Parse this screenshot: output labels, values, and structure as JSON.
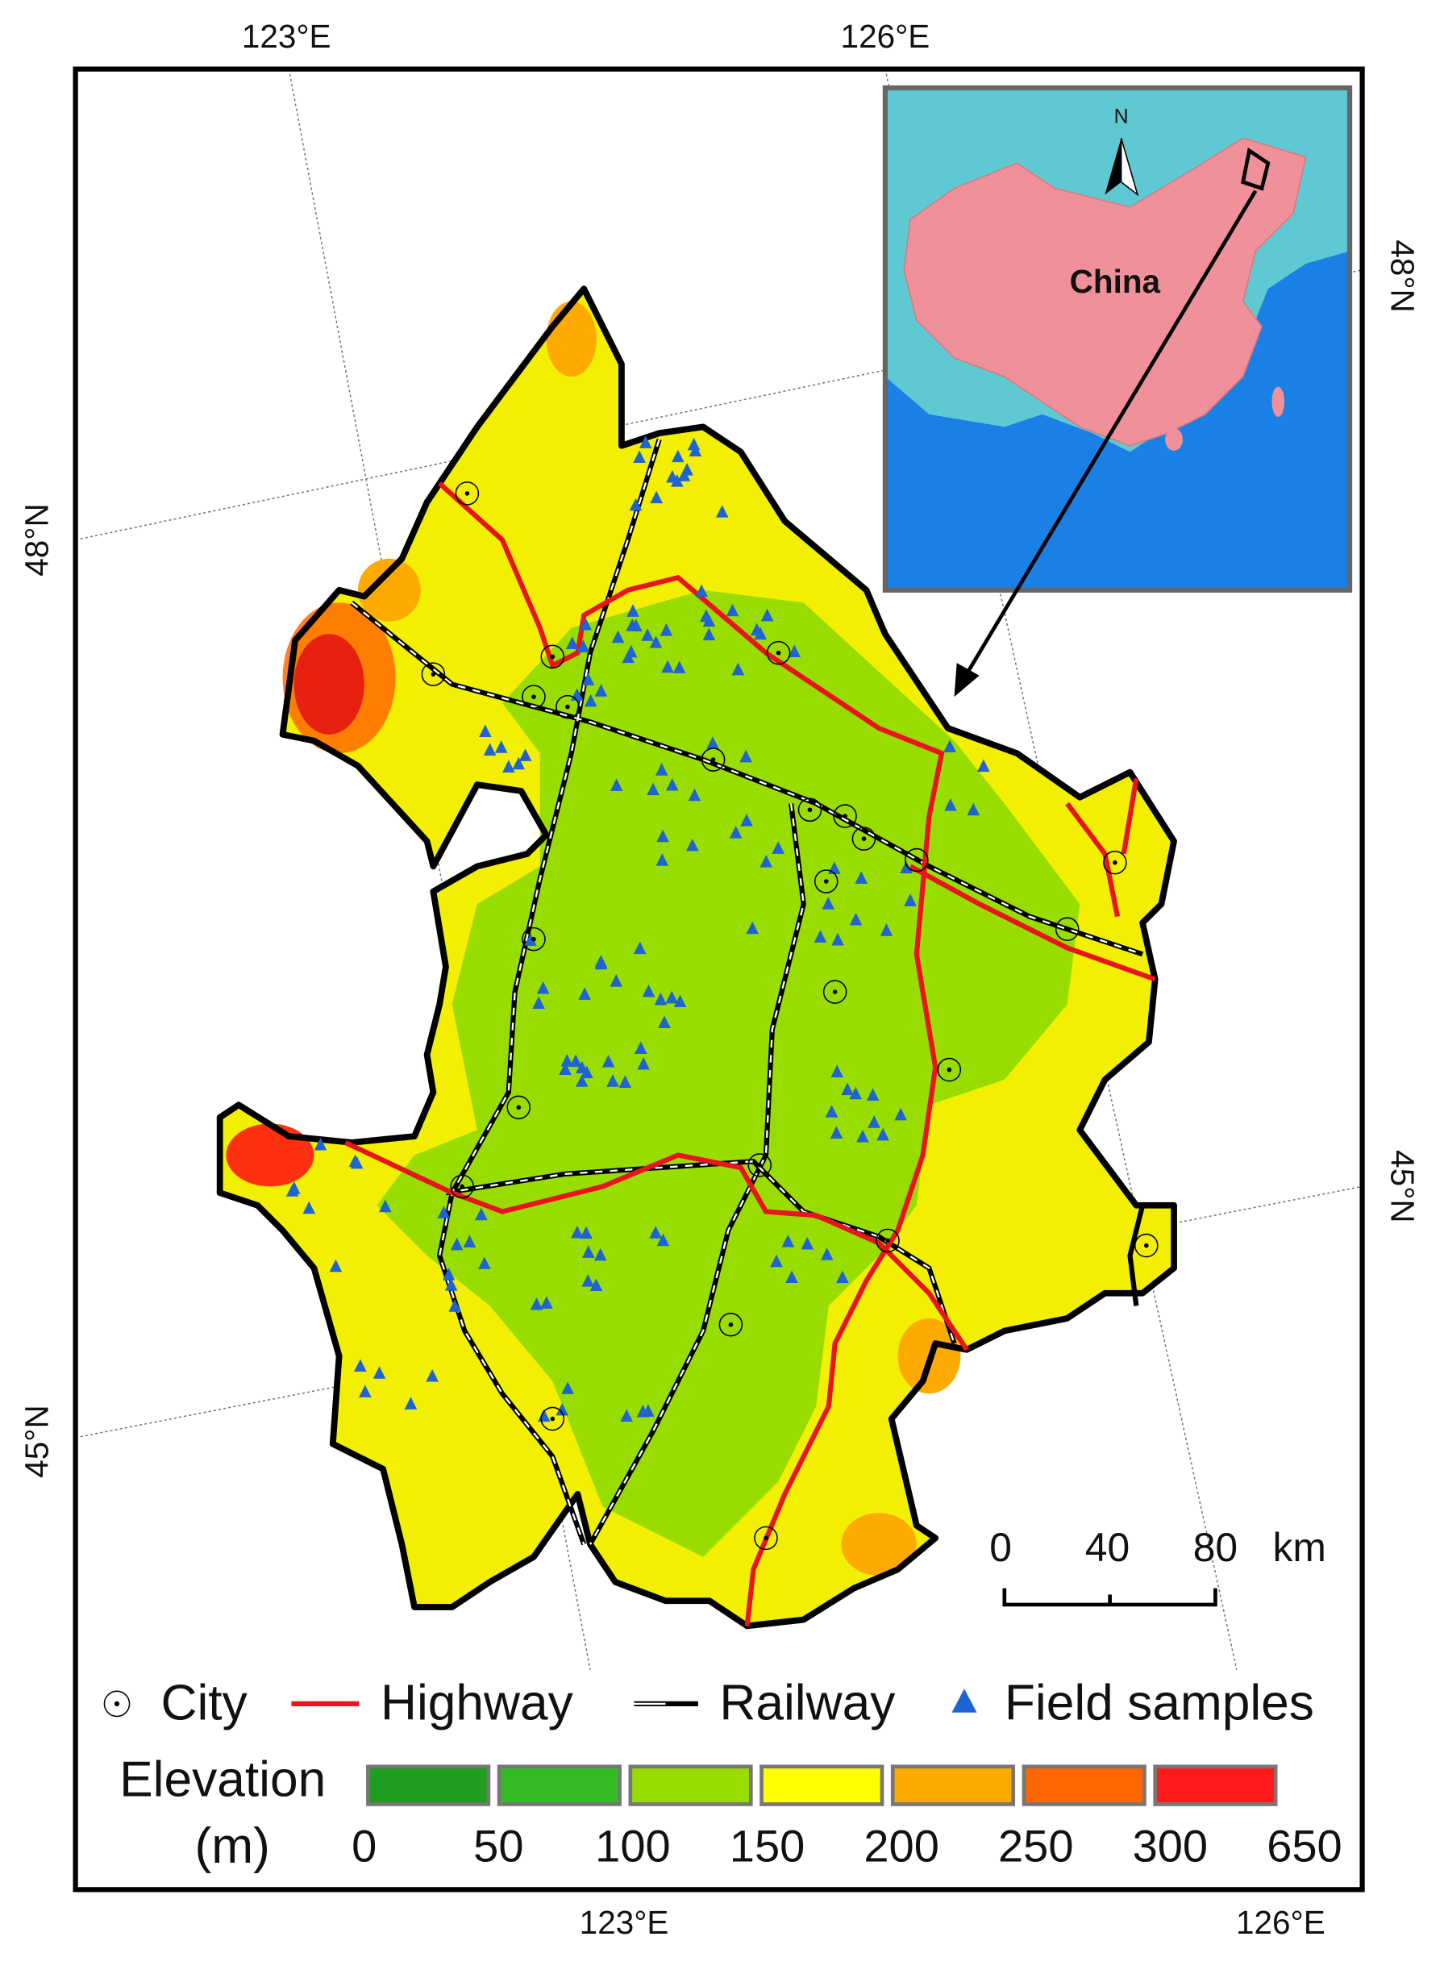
{
  "graticule": {
    "top": [
      "123°E",
      "126°E"
    ],
    "bottom": [
      "123°E",
      "126°E"
    ],
    "left": [
      "48°N",
      "45°N"
    ],
    "right": [
      "48°N",
      "45°N"
    ]
  },
  "inset": {
    "label": "China",
    "north": "N"
  },
  "scale_bar": {
    "labels": [
      "0",
      "40",
      "80"
    ],
    "unit": "km"
  },
  "legend": {
    "items": [
      "City",
      "Highway",
      "Railway",
      "Field samples"
    ]
  },
  "elevation": {
    "title": "Elevation",
    "unit": "(m)",
    "breaks": [
      "0",
      "50",
      "100",
      "150",
      "200",
      "250",
      "300",
      "650"
    ],
    "colors": [
      "#1f9e1f",
      "#33bb22",
      "#99dd00",
      "#ffff00",
      "#ffaa00",
      "#ff6600",
      "#ff1a1a"
    ]
  }
}
